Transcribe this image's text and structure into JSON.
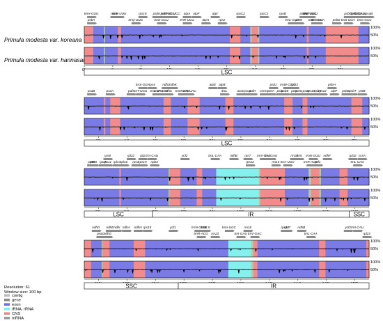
{
  "species": [
    "Primula modesta var. koreana",
    "Primula modesta var. hannasanensis"
  ],
  "legend": {
    "resolution": "Resolution: 61",
    "window": "Window size: 100 bp",
    "items": [
      {
        "label": "contig",
        "color": "#bdbdbd"
      },
      {
        "label": "gene",
        "color": "#8a8a8a"
      },
      {
        "label": "exon",
        "color": "#6f6fe0"
      },
      {
        "label": "tRNA, rRNA",
        "color": "#7df0f0"
      },
      {
        "label": "CNS",
        "color": "#f08a8a"
      },
      {
        "label": "mRNA",
        "color": "#9a9a9a"
      }
    ]
  },
  "colors": {
    "exon": "#7b7be6",
    "cns": "#f28c8c",
    "rna": "#86f0ef",
    "utr": "#a9d1a5",
    "gene_arrow": "#8c8c8c"
  },
  "panels": [
    {
      "ticks": [
        "0k",
        "4k",
        "8k",
        "12k",
        "16k",
        "20k",
        "24k",
        "28k",
        "32k",
        "36k"
      ],
      "regions": [
        {
          "label": "LSC",
          "from": 0.0,
          "to": 1.0
        }
      ],
      "genes_top": [
        {
          "name": "trnH-GUG",
          "pos": 0.03
        },
        {
          "name": "matK",
          "pos": 0.13
        },
        {
          "name": "trnK-UUU",
          "pos": 0.15
        },
        {
          "name": "rps16",
          "pos": 0.25
        },
        {
          "name": "trnG-UCC",
          "pos": 0.38
        },
        {
          "name": "trnY-GCU",
          "pos": 0.36
        },
        {
          "name": "psbK",
          "pos": 0.31
        },
        {
          "name": "psbI",
          "pos": 0.34
        },
        {
          "name": "atpA",
          "pos": 0.44
        },
        {
          "name": "atpF",
          "pos": 0.48
        },
        {
          "name": "atpI",
          "pos": 0.56
        },
        {
          "name": "rpoC2",
          "pos": 0.67
        },
        {
          "name": "rpoC1",
          "pos": 0.77
        },
        {
          "name": "rpoB",
          "pos": 0.85
        },
        {
          "name": "psbM",
          "pos": 0.94
        },
        {
          "name": "trnT-GGU",
          "pos": 0.97
        },
        {
          "name": "trnE-UUC",
          "pos": 0.965
        },
        {
          "name": "trnfM-CAU",
          "pos": 1.17
        },
        {
          "name": "psbC",
          "pos": 1.13
        },
        {
          "name": "psbZ",
          "pos": 1.16
        },
        {
          "name": "rps14",
          "pos": 1.19
        },
        {
          "name": "psaB",
          "pos": 1.22
        }
      ],
      "genes_mid": [
        {
          "name": "psbA",
          "pos": 0.03
        },
        {
          "name": "trnQ-UUG",
          "pos": 0.22
        },
        {
          "name": "trnS-GCU",
          "pos": 0.33
        },
        {
          "name": "trnR-UCU",
          "pos": 0.44
        },
        {
          "name": "atpH",
          "pos": 0.52
        },
        {
          "name": "rps2",
          "pos": 0.59
        },
        {
          "name": "trnC-GCA",
          "pos": 0.89
        },
        {
          "name": "trnD-GUC",
          "pos": 0.99
        },
        {
          "name": "petN",
          "pos": 0.92
        },
        {
          "name": "trnY-GUA",
          "pos": 1.0
        },
        {
          "name": "psbD",
          "pos": 1.08
        },
        {
          "name": "trnS-UGA",
          "pos": 1.13
        },
        {
          "name": "trnG-GCC",
          "pos": 1.2
        }
      ]
    },
    {
      "ticks": [
        "40k",
        "44k",
        "48k",
        "52k",
        "56k",
        "60k",
        "64k",
        "68k",
        "72k",
        "76k"
      ],
      "regions": [
        {
          "label": "LSC",
          "from": 0.0,
          "to": 1.0
        }
      ],
      "genes_top": [
        {
          "name": "trnS-GGA",
          "pos": 0.25
        },
        {
          "name": "rps4",
          "pos": 0.29
        },
        {
          "name": "ndhJ",
          "pos": 0.35
        },
        {
          "name": "ndhK",
          "pos": 0.38
        },
        {
          "name": "atpE",
          "pos": 0.55
        },
        {
          "name": "atpB",
          "pos": 0.59
        },
        {
          "name": "psbJ",
          "pos": 0.81
        },
        {
          "name": "trnW-CCA",
          "pos": 0.87
        },
        {
          "name": "rpl33",
          "pos": 0.9
        },
        {
          "name": "psbH",
          "pos": 1.06
        }
      ],
      "genes_mid": [
        {
          "name": "psaB",
          "pos": 0.03
        },
        {
          "name": "psaA",
          "pos": 0.11
        },
        {
          "name": "pafI",
          "pos": 0.2
        },
        {
          "name": "trnT-UGU",
          "pos": 0.24
        },
        {
          "name": "trnL-UAA",
          "pos": 0.31
        },
        {
          "name": "trnF-GAA",
          "pos": 0.33
        },
        {
          "name": "ndhC",
          "pos": 0.36
        },
        {
          "name": "trnM-CAU",
          "pos": 0.42
        },
        {
          "name": "trnV-UAC",
          "pos": 0.45
        },
        {
          "name": "rbcL",
          "pos": 0.6
        },
        {
          "name": "accD",
          "pos": 0.67
        },
        {
          "name": "psaI",
          "pos": 0.7
        },
        {
          "name": "pafII",
          "pos": 0.72
        },
        {
          "name": "cemA",
          "pos": 0.77
        },
        {
          "name": "petA",
          "pos": 0.8
        },
        {
          "name": "psbL",
          "pos": 0.84
        },
        {
          "name": "psbE",
          "pos": 0.86
        },
        {
          "name": "petL",
          "pos": 0.9
        },
        {
          "name": "petG",
          "pos": 0.92
        },
        {
          "name": "psaJ",
          "pos": 0.95
        },
        {
          "name": "rps18",
          "pos": 0.97
        },
        {
          "name": "rpl20",
          "pos": 1.0
        },
        {
          "name": "clpP",
          "pos": 1.07
        },
        {
          "name": "psbB",
          "pos": 1.12
        },
        {
          "name": "psbT",
          "pos": 1.15
        },
        {
          "name": "petB",
          "pos": 1.19
        },
        {
          "name": "rps12",
          "pos": 1.02
        }
      ]
    },
    {
      "ticks": [
        "80k",
        "84k",
        "88k",
        "92k",
        "96k",
        "100k",
        "104k",
        "108k",
        "112k",
        "116k"
      ],
      "regions": [
        {
          "label": "LSC",
          "from": 0.0,
          "to": 0.24
        },
        {
          "label": "IR",
          "from": 0.24,
          "to": 0.93
        },
        {
          "label": "SSC",
          "from": 0.93,
          "to": 1.0
        }
      ],
      "genes_top": [
        {
          "name": "rps8",
          "pos": 0.1
        },
        {
          "name": "rpl22",
          "pos": 0.2
        },
        {
          "name": "rpl2",
          "pos": 0.25
        },
        {
          "name": "trnI-CAU",
          "pos": 0.29
        },
        {
          "name": "ycf2",
          "pos": 0.43
        },
        {
          "name": "trnL-CAA",
          "pos": 0.56
        },
        {
          "name": "ndhB",
          "pos": 0.64
        },
        {
          "name": "rps7",
          "pos": 0.7
        },
        {
          "name": "trnV-GAC",
          "pos": 0.77
        },
        {
          "name": "trnI-GAU",
          "pos": 0.8
        },
        {
          "name": "rrn23",
          "pos": 0.9
        },
        {
          "name": "rrn5",
          "pos": 0.92
        },
        {
          "name": "trnN-GUU",
          "pos": 0.98
        },
        {
          "name": "ndhF",
          "pos": 1.04
        },
        {
          "name": "rpl32",
          "pos": 1.15
        },
        {
          "name": "ccsA",
          "pos": 1.19
        }
      ],
      "genes_mid": [
        {
          "name": "petB",
          "pos": 0.03
        },
        {
          "name": "petD",
          "pos": 0.04
        },
        {
          "name": "rpoA",
          "pos": 0.08
        },
        {
          "name": "rps11",
          "pos": 0.1
        },
        {
          "name": "rpl14",
          "pos": 0.14
        },
        {
          "name": "rpl16",
          "pos": 0.17
        },
        {
          "name": "rps3",
          "pos": 0.22
        },
        {
          "name": "rps19",
          "pos": 0.25
        },
        {
          "name": "rpl23",
          "pos": 0.3
        },
        {
          "name": "rps12",
          "pos": 0.71
        },
        {
          "name": "rrn16",
          "pos": 0.82
        },
        {
          "name": "trnA-UGC",
          "pos": 0.87
        },
        {
          "name": "trnR-ACG",
          "pos": 0.97
        },
        {
          "name": "ycf1",
          "pos": 1.0
        },
        {
          "name": "trnL-UAG",
          "pos": 1.17
        }
      ]
    },
    {
      "ticks": [
        "116k",
        "120k",
        "124k",
        "128k",
        "132k",
        "136k",
        "140k",
        "144k",
        "148k",
        "152k"
      ],
      "regions": [
        {
          "label": "SSC",
          "from": 0.0,
          "to": 0.33
        },
        {
          "label": "IR",
          "from": 0.33,
          "to": 1.0
        }
      ],
      "genes_top": [
        {
          "name": "ndhH",
          "pos": 0.23
        },
        {
          "name": "rrn4.5",
          "pos": 0.52
        },
        {
          "name": "rrn5",
          "pos": 0.51
        },
        {
          "name": "rps7",
          "pos": 0.87
        },
        {
          "name": "ndhD",
          "pos": 0.05
        },
        {
          "name": "ndhE",
          "pos": 0.11
        },
        {
          "name": "ndhI",
          "pos": 0.14
        },
        {
          "name": "ndhA",
          "pos": 0.18
        },
        {
          "name": "rps15",
          "pos": 0.27
        },
        {
          "name": "ycf1",
          "pos": 0.38
        },
        {
          "name": "trnN-GUU",
          "pos": 0.49
        },
        {
          "name": "trnA-UGC",
          "pos": 0.62
        },
        {
          "name": "rrn16",
          "pos": 0.7
        },
        {
          "name": "rps12",
          "pos": 0.86
        },
        {
          "name": "ndhB",
          "pos": 0.93
        },
        {
          "name": "ycf2",
          "pos": 1.13
        },
        {
          "name": "trnI-CAU",
          "pos": 1.17
        }
      ],
      "genes_mid": [
        {
          "name": "psaC",
          "pos": 0.07
        },
        {
          "name": "ndhG",
          "pos": 0.1
        },
        {
          "name": "trnR-ACG",
          "pos": 0.5
        },
        {
          "name": "rrn23",
          "pos": 0.56
        },
        {
          "name": "trnI-GAU",
          "pos": 0.67
        },
        {
          "name": "trnV-GAC",
          "pos": 0.73
        },
        {
          "name": "trnL-CAA",
          "pos": 0.97
        },
        {
          "name": "rpl23",
          "pos": 1.21
        }
      ]
    }
  ]
}
